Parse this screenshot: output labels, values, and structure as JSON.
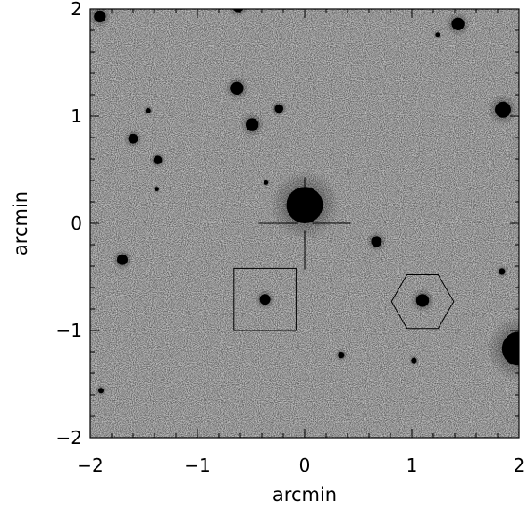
{
  "plot": {
    "xlabel": "arcmin",
    "ylabel": "arcmin",
    "xlim": [
      -2,
      2
    ],
    "ylim": [
      -2,
      2
    ],
    "x_ticks": [
      "−2",
      "−1",
      "0",
      "1",
      "2"
    ],
    "y_ticks": [
      "2",
      "1",
      "0",
      "−1",
      "−2"
    ]
  },
  "image": {
    "style": "grayscale-noise",
    "background": "#c8c8c8",
    "sources": [
      {
        "x": -1.91,
        "y": 1.93,
        "r": 0.055
      },
      {
        "x": -0.62,
        "y": 2.02,
        "r": 0.05
      },
      {
        "x": 1.43,
        "y": 1.86,
        "r": 0.06
      },
      {
        "x": -0.63,
        "y": 1.26,
        "r": 0.06
      },
      {
        "x": -0.49,
        "y": 0.92,
        "r": 0.06
      },
      {
        "x": -0.24,
        "y": 1.07,
        "r": 0.04
      },
      {
        "x": -1.6,
        "y": 0.79,
        "r": 0.045
      },
      {
        "x": -1.37,
        "y": 0.59,
        "r": 0.04
      },
      {
        "x": -1.46,
        "y": 1.05,
        "r": 0.025
      },
      {
        "x": -1.38,
        "y": 0.32,
        "r": 0.02
      },
      {
        "x": 1.85,
        "y": 1.06,
        "r": 0.075
      },
      {
        "x": -1.7,
        "y": -0.34,
        "r": 0.05
      },
      {
        "x": 0.67,
        "y": -0.17,
        "r": 0.05
      },
      {
        "x": -0.37,
        "y": -0.71,
        "r": 0.05
      },
      {
        "x": 1.1,
        "y": -0.72,
        "r": 0.06
      },
      {
        "x": 1.84,
        "y": -0.45,
        "r": 0.03
      },
      {
        "x": 0.34,
        "y": -1.23,
        "r": 0.03
      },
      {
        "x": 1.02,
        "y": -1.28,
        "r": 0.025
      },
      {
        "x": -1.9,
        "y": -1.56,
        "r": 0.025
      },
      {
        "x": -0.36,
        "y": 0.38,
        "r": 0.02
      },
      {
        "x": 1.24,
        "y": 1.76,
        "r": 0.02
      },
      {
        "x": 0.0,
        "y": 0.17,
        "r": 0.17
      },
      {
        "x": 2.0,
        "y": -1.17,
        "r": 0.16
      }
    ]
  },
  "overlays": {
    "crosshair": {
      "x": 0.0,
      "y": 0.0,
      "arm": 0.43
    },
    "square": {
      "x": -0.37,
      "y": -0.71,
      "half": 0.29
    },
    "hexagon": {
      "x": 1.1,
      "y": -0.73,
      "radius": 0.29
    }
  },
  "colors": {
    "frame": "#000000",
    "source": "#000000"
  }
}
